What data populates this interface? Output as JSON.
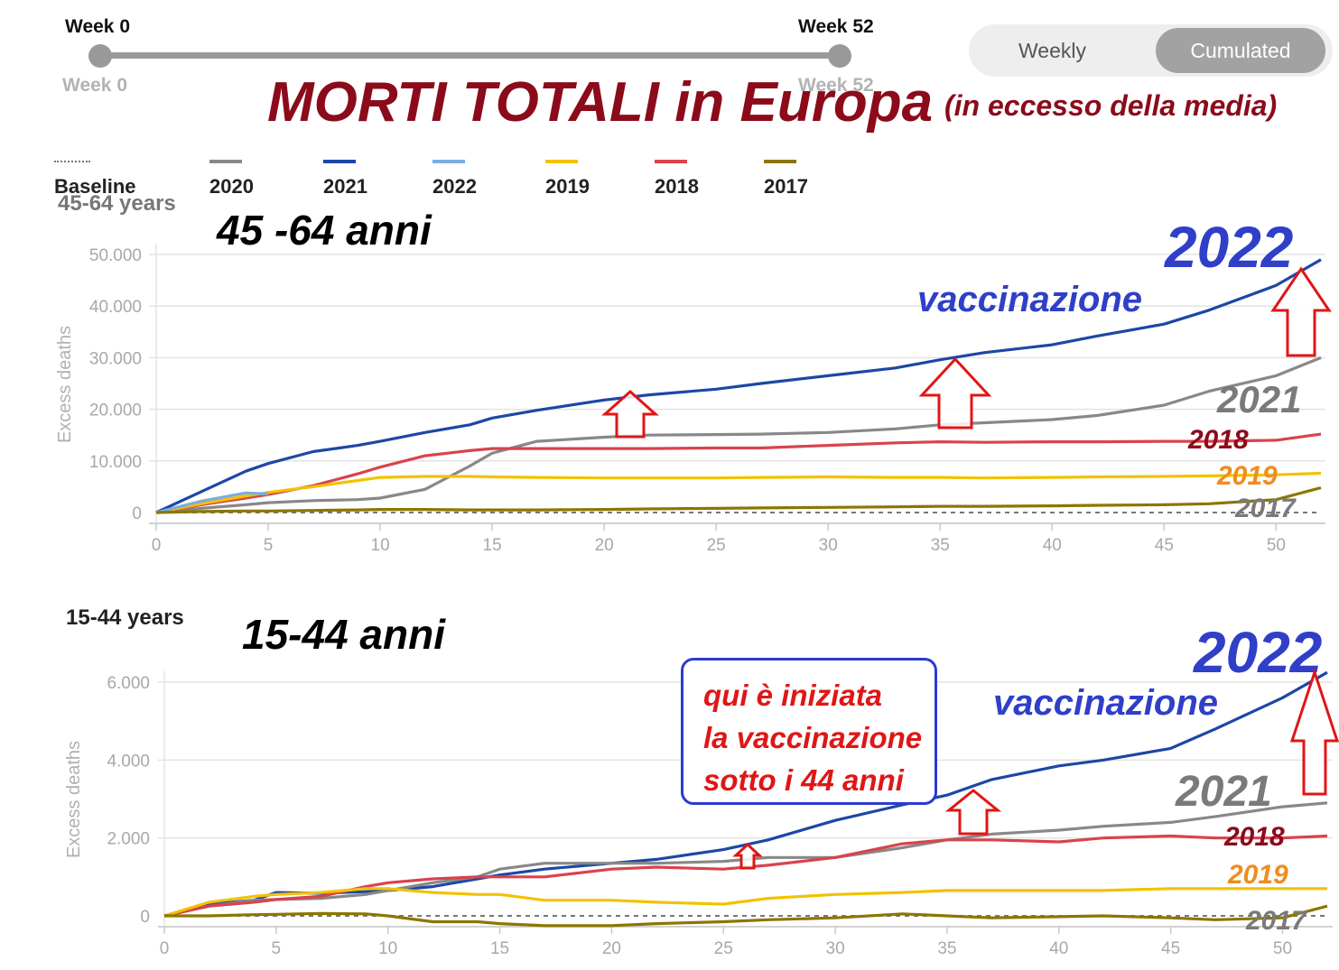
{
  "slider": {
    "start_label": "Week 0",
    "end_label": "Week 52",
    "start_sub": "Week 0",
    "end_sub": "Week 52"
  },
  "toggle": {
    "weekly_label": "Weekly",
    "cumulated_label": "Cumulated",
    "selected": "Cumulated"
  },
  "overlay_title": "MORTI TOTALI in Europa",
  "overlay_subtitle": "(in eccesso della media)",
  "legend": [
    {
      "name": "Baseline",
      "color": "#777777",
      "style": "dotted"
    },
    {
      "name": "2020",
      "color": "#888888"
    },
    {
      "name": "2021",
      "color": "#1d47a6"
    },
    {
      "name": "2022",
      "color": "#7aaee0"
    },
    {
      "name": "2019",
      "color": "#f2c200"
    },
    {
      "name": "2018",
      "color": "#d9434c"
    },
    {
      "name": "2017",
      "color": "#8c7600"
    }
  ],
  "colors": {
    "annotation_blue": "#2f3fc8",
    "annotation_gray": "#7a7a7a",
    "annotation_darkred": "#8b0b1b",
    "annotation_orange": "#f08c1e",
    "arrow_red": "#e01616"
  },
  "chart_data": [
    {
      "type": "line",
      "panel_title": "45-64 years",
      "annotation_age": "45 -64 anni",
      "ylabel": "Excess deaths",
      "xlim": [
        0,
        52
      ],
      "ylim": [
        0,
        50000
      ],
      "xticks": [
        0,
        5,
        10,
        15,
        20,
        25,
        30,
        35,
        40,
        45,
        50
      ],
      "yticks": [
        0,
        10000,
        20000,
        30000,
        40000,
        50000
      ],
      "ytick_labels": [
        "0",
        "10.000",
        "20.000",
        "30.000",
        "40.000",
        "50.000"
      ],
      "grid": true,
      "x": [
        0,
        2,
        4,
        5,
        7,
        9,
        10,
        12,
        14,
        15,
        17,
        20,
        22,
        25,
        27,
        30,
        33,
        35,
        37,
        40,
        42,
        45,
        47,
        50,
        52
      ],
      "series": [
        {
          "name": "2021",
          "color": "#1d47a6",
          "values": [
            0,
            4000,
            8000,
            9500,
            11800,
            13000,
            13800,
            15500,
            17000,
            18300,
            19800,
            21800,
            22800,
            23900,
            25000,
            26500,
            28000,
            29600,
            31000,
            32500,
            34200,
            36500,
            39200,
            44000,
            49000
          ]
        },
        {
          "name": "2020",
          "color": "#888888",
          "values": [
            0,
            800,
            1500,
            1900,
            2300,
            2500,
            2800,
            4500,
            9000,
            11500,
            13800,
            14600,
            15000,
            15100,
            15200,
            15500,
            16200,
            17000,
            17400,
            18000,
            18800,
            20800,
            23500,
            26500,
            30000
          ]
        },
        {
          "name": "2018",
          "color": "#d9434c",
          "values": [
            0,
            1500,
            2800,
            3500,
            5200,
            7500,
            8800,
            11000,
            12000,
            12400,
            12400,
            12400,
            12400,
            12500,
            12500,
            13000,
            13500,
            13700,
            13600,
            13700,
            13700,
            13800,
            13800,
            14000,
            15200
          ]
        },
        {
          "name": "2019",
          "color": "#f2c200",
          "values": [
            0,
            1700,
            3200,
            3900,
            5000,
            6200,
            6800,
            7000,
            7000,
            6900,
            6800,
            6700,
            6700,
            6700,
            6800,
            6900,
            6800,
            6800,
            6700,
            6800,
            6900,
            7000,
            7100,
            7300,
            7600
          ]
        },
        {
          "name": "2022",
          "color": "#7aaee0",
          "values": [
            0,
            2200,
            3800,
            3600,
            null,
            null,
            null,
            null,
            null,
            null,
            null,
            null,
            null,
            null,
            null,
            null,
            null,
            null,
            null,
            null,
            null,
            null,
            null,
            null,
            null
          ]
        },
        {
          "name": "2017",
          "color": "#8c7600",
          "values": [
            0,
            200,
            300,
            300,
            400,
            500,
            600,
            600,
            500,
            500,
            500,
            600,
            700,
            800,
            900,
            1000,
            1100,
            1200,
            1200,
            1300,
            1400,
            1500,
            1700,
            2500,
            4800
          ]
        }
      ],
      "annotations": {
        "year_2022": "2022",
        "vaccinazione": "vaccinazione",
        "year_2021": "2021",
        "year_2018": "2018",
        "year_2019": "2019",
        "year_2017": "2017"
      }
    },
    {
      "type": "line",
      "panel_title": "15-44 years",
      "annotation_age": "15-44 anni",
      "ylabel": "Excess deaths",
      "xlim": [
        0,
        52
      ],
      "ylim": [
        0,
        6000
      ],
      "xticks": [
        0,
        5,
        10,
        15,
        20,
        25,
        30,
        35,
        40,
        45,
        50
      ],
      "yticks": [
        0,
        2000,
        4000,
        6000
      ],
      "ytick_labels": [
        "0",
        "2.000",
        "4.000",
        "6.000"
      ],
      "grid": true,
      "x": [
        0,
        2,
        4,
        5,
        7,
        9,
        10,
        12,
        14,
        15,
        17,
        20,
        22,
        25,
        27,
        30,
        33,
        35,
        37,
        40,
        42,
        45,
        47,
        50,
        52
      ],
      "series": [
        {
          "name": "2021",
          "color": "#1d47a6",
          "values": [
            0,
            300,
            400,
            600,
            580,
            620,
            650,
            750,
            950,
            1050,
            1200,
            1350,
            1450,
            1700,
            1950,
            2450,
            2850,
            3100,
            3500,
            3850,
            4000,
            4300,
            4800,
            5600,
            6250
          ]
        },
        {
          "name": "2020",
          "color": "#888888",
          "values": [
            0,
            250,
            400,
            420,
            450,
            550,
            650,
            850,
            1000,
            1200,
            1350,
            1350,
            1350,
            1400,
            1500,
            1500,
            1750,
            1950,
            2100,
            2200,
            2300,
            2400,
            2550,
            2800,
            2900
          ]
        },
        {
          "name": "2018",
          "color": "#d9434c",
          "values": [
            0,
            250,
            350,
            420,
            500,
            750,
            850,
            950,
            1000,
            1000,
            1000,
            1200,
            1250,
            1200,
            1300,
            1500,
            1850,
            1950,
            1950,
            1900,
            2000,
            2050,
            2000,
            2000,
            2050
          ]
        },
        {
          "name": "2019",
          "color": "#f2c200",
          "values": [
            0,
            350,
            500,
            550,
            600,
            700,
            700,
            600,
            550,
            550,
            400,
            400,
            350,
            300,
            450,
            550,
            600,
            650,
            650,
            650,
            650,
            700,
            700,
            700,
            700
          ]
        },
        {
          "name": "2017",
          "color": "#8c7600",
          "values": [
            0,
            0,
            30,
            40,
            60,
            50,
            0,
            -150,
            -150,
            -200,
            -250,
            -250,
            -200,
            -150,
            -100,
            -50,
            50,
            0,
            -50,
            -20,
            0,
            -50,
            -100,
            -50,
            250
          ]
        }
      ],
      "annotations": {
        "year_2022": "2022",
        "vaccinazione": "vaccinazione",
        "year_2021": "2021",
        "year_2018": "2018",
        "year_2019": "2019",
        "year_2017": "2017",
        "note_lines": [
          "qui è iniziata",
          "la vaccinazione",
          "sotto i 44 anni"
        ]
      }
    }
  ]
}
